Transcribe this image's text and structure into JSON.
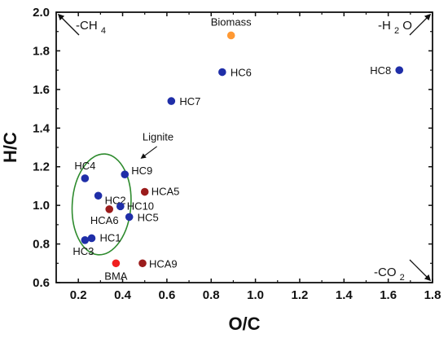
{
  "chart_data": {
    "type": "scatter",
    "xlabel": "O/C",
    "ylabel": "H/C",
    "xlim": [
      0.1,
      1.8
    ],
    "ylim": [
      0.6,
      2.0
    ],
    "x_ticks": [
      "0.2",
      "0.4",
      "0.6",
      "0.8",
      "1.0",
      "1.2",
      "1.4",
      "1.6",
      "1.8"
    ],
    "y_ticks": [
      "0.6",
      "0.8",
      "1.0",
      "1.2",
      "1.4",
      "1.6",
      "1.8",
      "2.0"
    ],
    "colors": {
      "blue": "#1f2ea8",
      "darkred": "#9b1c1c",
      "red": "#f01f1f",
      "orange": "#ff9933",
      "ellipse": "#2e8b2e"
    },
    "points": [
      {
        "label": "Biomass",
        "x": 0.89,
        "y": 1.88,
        "color": "#ff9933"
      },
      {
        "label": "HC6",
        "x": 0.85,
        "y": 1.69,
        "color": "#1f2ea8"
      },
      {
        "label": "HC7",
        "x": 0.62,
        "y": 1.54,
        "color": "#1f2ea8"
      },
      {
        "label": "HC8",
        "x": 1.65,
        "y": 1.7,
        "color": "#1f2ea8"
      },
      {
        "label": "HC4",
        "x": 0.23,
        "y": 1.14,
        "color": "#1f2ea8"
      },
      {
        "label": "HC9",
        "x": 0.41,
        "y": 1.16,
        "color": "#1f2ea8"
      },
      {
        "label": "HC2",
        "x": 0.29,
        "y": 1.05,
        "color": "#1f2ea8"
      },
      {
        "label": "HCA5",
        "x": 0.5,
        "y": 1.07,
        "color": "#9b1c1c"
      },
      {
        "label": "HC10",
        "x": 0.39,
        "y": 0.995,
        "color": "#1f2ea8"
      },
      {
        "label": "HCA6",
        "x": 0.34,
        "y": 0.98,
        "color": "#9b1c1c"
      },
      {
        "label": "HC5",
        "x": 0.43,
        "y": 0.94,
        "color": "#1f2ea8"
      },
      {
        "label": "HC1",
        "x": 0.26,
        "y": 0.83,
        "color": "#1f2ea8"
      },
      {
        "label": "HC3",
        "x": 0.23,
        "y": 0.82,
        "color": "#1f2ea8"
      },
      {
        "label": "BMA",
        "x": 0.37,
        "y": 0.7,
        "color": "#f01f1f"
      },
      {
        "label": "HCA9",
        "x": 0.49,
        "y": 0.7,
        "color": "#9b1c1c"
      }
    ],
    "annotations": {
      "lignite": "Lignite",
      "ch4_prefix": "-CH",
      "ch4_sub": "4",
      "h2o_prefix": "-H",
      "h2o_sub": "2",
      "h2o_suffix": "O",
      "co2_prefix": "-CO",
      "co2_sub": "2"
    }
  }
}
